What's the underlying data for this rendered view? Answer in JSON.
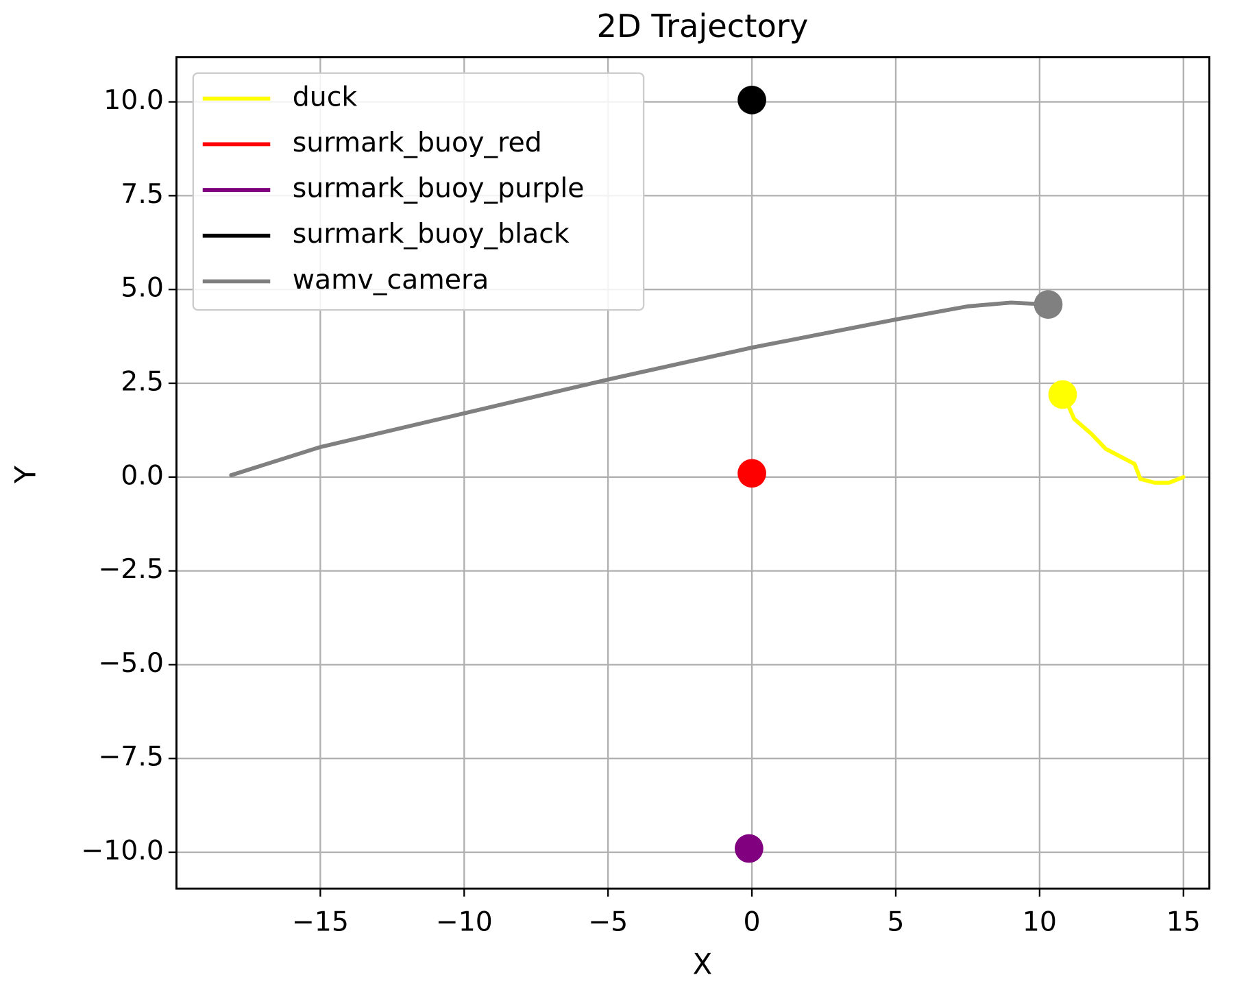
{
  "chart_data": {
    "type": "line",
    "title": "2D Trajectory",
    "x_label": "X",
    "y_label": "Y",
    "xlim": [
      -20.0,
      15.9
    ],
    "ylim": [
      -10.97,
      11.19
    ],
    "xticks": [
      {
        "value": -15,
        "label": "−15"
      },
      {
        "value": -10,
        "label": "−10"
      },
      {
        "value": -5,
        "label": "−5"
      },
      0,
      5,
      10,
      15
    ],
    "yticks": [
      {
        "value": -10,
        "label": "−10.0"
      },
      {
        "value": -7.5,
        "label": "−7.5"
      },
      {
        "value": -5,
        "label": "−5.0"
      },
      {
        "value": -2.5,
        "label": "−2.5"
      },
      {
        "value": 0,
        "label": "0.0"
      },
      2.5,
      {
        "value": 5,
        "label": "5.0"
      },
      7.5,
      {
        "value": 10,
        "label": "10.0"
      }
    ],
    "grid": true,
    "legend": "upper left",
    "series": [
      {
        "name": "duck",
        "color": "#ffff00",
        "x": [
          15,
          14.5,
          14,
          13.5,
          13.3,
          12.8,
          12.3,
          11.8,
          11.2,
          11,
          10.8
        ],
        "y": [
          0.0,
          -0.15,
          -0.15,
          -0.05,
          0.35,
          0.55,
          0.75,
          1.15,
          1.55,
          1.9,
          2.2
        ]
      },
      {
        "name": "surmark_buoy_red",
        "color": "#ff0000",
        "x": [
          0
        ],
        "y": [
          0.1
        ]
      },
      {
        "name": "surmark_buoy_purple",
        "color": "#800080",
        "x": [
          -0.1
        ],
        "y": [
          -9.9
        ]
      },
      {
        "name": "surmark_buoy_black",
        "color": "#000000",
        "x": [
          0
        ],
        "y": [
          10.05
        ]
      },
      {
        "name": "wamv_camera",
        "color": "#808080",
        "x": [
          -18.1,
          -15,
          -10,
          -5,
          0,
          5,
          7.5,
          9,
          10.3
        ],
        "y": [
          0.05,
          0.8,
          1.7,
          2.6,
          3.45,
          4.2,
          4.55,
          4.65,
          4.6
        ]
      }
    ]
  }
}
